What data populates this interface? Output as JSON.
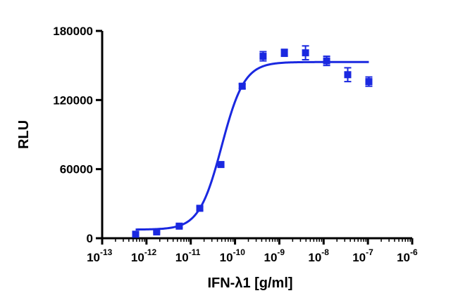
{
  "chart_data": {
    "type": "scatter",
    "title": "",
    "xlabel": "IFN-λ1 [g/ml]",
    "ylabel": "RLU",
    "x_scale": "log",
    "xlim": [
      1e-13,
      1e-06
    ],
    "ylim": [
      0,
      180000
    ],
    "x_tick_labels": [
      "10",
      "10",
      "10",
      "10",
      "10",
      "10",
      "10",
      "10"
    ],
    "x_tick_exponents": [
      "-13",
      "-12",
      "-11",
      "-10",
      "-9",
      "-8",
      "-7",
      "-6"
    ],
    "y_tick_labels": [
      "0",
      "60000",
      "120000",
      "180000"
    ],
    "y_ticks": [
      0,
      60000,
      120000,
      180000
    ],
    "grid": false,
    "legend": "none",
    "colors": {
      "series": "#1a28e0",
      "axis": "#000000"
    },
    "series": [
      {
        "points": [
          {
            "x": 5.7e-13,
            "y": 3500,
            "err": 1000
          },
          {
            "x": 1.7e-12,
            "y": 5500,
            "err": 800
          },
          {
            "x": 5.5e-12,
            "y": 10500,
            "err": 1200
          },
          {
            "x": 1.6e-11,
            "y": 26000,
            "err": 1500
          },
          {
            "x": 4.8e-11,
            "y": 64000,
            "err": 1500
          },
          {
            "x": 1.45e-10,
            "y": 132000,
            "err": 2000
          },
          {
            "x": 4.3e-10,
            "y": 158000,
            "err": 4000
          },
          {
            "x": 1.3e-09,
            "y": 161000,
            "err": 3000
          },
          {
            "x": 3.9e-09,
            "y": 161000,
            "err": 6000
          },
          {
            "x": 1.17e-08,
            "y": 154000,
            "err": 4000
          },
          {
            "x": 3.5e-08,
            "y": 142000,
            "err": 6000
          },
          {
            "x": 1.05e-07,
            "y": 136000,
            "err": 4000
          }
        ],
        "fit": {
          "model": "4PL",
          "bottom": 7500,
          "top": 153000,
          "logEC50": -10.3,
          "hill": 1.7
        }
      }
    ]
  }
}
